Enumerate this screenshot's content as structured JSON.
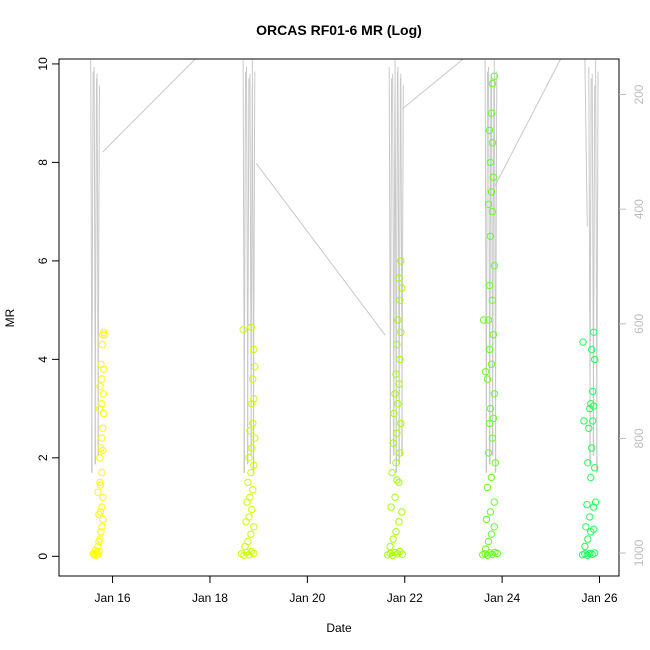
{
  "chart_data": {
    "type": "scatter",
    "title": "ORCAS RF01-6 MR (Log)",
    "xlabel": "Date",
    "ylabel": "MR",
    "x_ticks": [
      {
        "label": "Jan 16",
        "day": 16
      },
      {
        "label": "Jan 18",
        "day": 18
      },
      {
        "label": "Jan 20",
        "day": 20
      },
      {
        "label": "Jan 22",
        "day": 22
      },
      {
        "label": "Jan 24",
        "day": 24
      },
      {
        "label": "Jan 26",
        "day": 26
      }
    ],
    "xlim": [
      14.9,
      26.4
    ],
    "ylim": [
      -0.4,
      10.1
    ],
    "y_ticks": [
      0,
      2,
      4,
      6,
      8,
      10
    ],
    "right_axis": {
      "label": "",
      "ticks": [
        200,
        400,
        600,
        800,
        1000
      ],
      "lim": [
        1040,
        138
      ],
      "reversed": true,
      "color": "#bdbdbd"
    },
    "grid": false,
    "pressure_line_color": "#c8c8c8",
    "series": [
      {
        "color": "#ffff00",
        "x": [
          15.6,
          15.62,
          15.64,
          15.66,
          15.68,
          15.7,
          15.72,
          15.65,
          15.7,
          15.72,
          15.74,
          15.76,
          15.78,
          15.8,
          15.72,
          15.75,
          15.78,
          15.8,
          15.7,
          15.74,
          15.78,
          15.74,
          15.76,
          15.78,
          15.8,
          15.82,
          15.73,
          15.78,
          15.81,
          15.74,
          15.78,
          15.82,
          15.76,
          15.79,
          15.8,
          15.82,
          15.84,
          15.75,
          15.8
        ],
        "y": [
          0.05,
          0.03,
          0.06,
          0.02,
          0.08,
          0.04,
          0.1,
          0.12,
          0.2,
          0.3,
          0.35,
          0.5,
          0.6,
          0.75,
          0.85,
          0.9,
          1.0,
          1.2,
          1.3,
          1.5,
          1.7,
          2.0,
          2.2,
          2.4,
          2.6,
          2.9,
          3.0,
          3.1,
          3.3,
          3.45,
          3.6,
          3.8,
          3.9,
          4.3,
          4.5,
          4.55,
          4.5,
          1.45,
          2.15
        ]
      },
      {
        "color": "#ccff00",
        "x": [
          18.65,
          18.7,
          18.75,
          18.8,
          18.85,
          18.9,
          18.72,
          18.78,
          18.84,
          18.9,
          18.74,
          18.8,
          18.86,
          18.76,
          18.82,
          18.88,
          18.78,
          18.84,
          18.9,
          18.8,
          18.86,
          18.92,
          18.82,
          18.88,
          18.86,
          18.9,
          18.88,
          18.92,
          18.9,
          18.68,
          18.85
        ],
        "y": [
          0.05,
          0.02,
          0.08,
          0.03,
          0.1,
          0.06,
          0.2,
          0.3,
          0.45,
          0.6,
          0.7,
          0.8,
          0.95,
          1.1,
          1.2,
          1.35,
          1.5,
          1.7,
          1.85,
          2.0,
          2.2,
          2.4,
          2.55,
          2.7,
          3.1,
          3.2,
          3.6,
          3.85,
          4.2,
          4.6,
          4.65
        ]
      },
      {
        "color": "#a6ff00",
        "x": [
          21.65,
          21.7,
          21.75,
          21.8,
          21.85,
          21.9,
          21.95,
          21.7,
          21.76,
          21.82,
          21.88,
          21.94,
          21.72,
          21.8,
          21.88,
          21.74,
          21.82,
          21.9,
          21.76,
          21.84,
          21.92,
          21.78,
          21.86,
          21.8,
          21.88,
          21.82,
          21.9,
          21.84,
          21.92,
          21.86,
          21.9,
          21.94,
          21.88,
          21.92,
          21.84
        ],
        "y": [
          0.03,
          0.06,
          0.02,
          0.08,
          0.05,
          0.1,
          0.04,
          0.2,
          0.35,
          0.5,
          0.7,
          0.9,
          1.0,
          1.2,
          1.5,
          1.7,
          1.9,
          2.1,
          2.3,
          2.5,
          2.7,
          2.9,
          3.1,
          3.3,
          3.5,
          3.7,
          4.0,
          4.3,
          4.55,
          4.8,
          5.2,
          5.45,
          5.65,
          6.0,
          1.55
        ]
      },
      {
        "color": "#66ff22",
        "x": [
          23.6,
          23.65,
          23.7,
          23.75,
          23.8,
          23.85,
          23.9,
          23.66,
          23.72,
          23.78,
          23.84,
          23.68,
          23.76,
          23.84,
          23.7,
          23.78,
          23.86,
          23.72,
          23.8,
          23.74,
          23.82,
          23.76,
          23.84,
          23.7,
          23.78,
          23.74,
          23.82,
          23.72,
          23.8,
          23.74,
          23.84,
          23.76,
          23.8,
          23.72,
          23.78,
          23.82,
          23.76,
          23.8,
          23.74,
          23.78,
          23.8,
          23.84,
          23.66,
          23.62
        ],
        "y": [
          0.03,
          0.05,
          0.02,
          0.07,
          0.04,
          0.08,
          0.06,
          0.15,
          0.3,
          0.45,
          0.6,
          0.75,
          0.9,
          1.1,
          1.4,
          1.6,
          1.9,
          2.1,
          2.4,
          2.7,
          2.8,
          3.0,
          3.3,
          3.6,
          3.9,
          4.2,
          4.5,
          4.8,
          5.2,
          5.5,
          5.9,
          6.5,
          7.0,
          7.15,
          7.4,
          7.7,
          8.0,
          8.4,
          8.65,
          9.0,
          9.6,
          9.75,
          3.75,
          4.8
        ]
      },
      {
        "color": "#22ff55",
        "x": [
          25.65,
          25.7,
          25.75,
          25.8,
          25.85,
          25.9,
          25.7,
          25.76,
          25.82,
          25.88,
          25.72,
          25.8,
          25.88,
          25.74,
          25.82,
          25.9,
          25.76,
          25.84,
          25.78,
          25.86,
          25.8,
          25.88,
          25.82,
          25.86,
          25.9,
          25.84,
          25.88,
          25.66,
          25.68,
          25.92
        ],
        "y": [
          0.03,
          0.05,
          0.02,
          0.06,
          0.04,
          0.07,
          0.2,
          0.35,
          0.5,
          0.55,
          0.6,
          0.8,
          1.0,
          1.05,
          1.6,
          1.8,
          1.9,
          2.2,
          2.6,
          2.75,
          3.0,
          3.05,
          3.1,
          3.35,
          4.0,
          4.2,
          4.55,
          4.35,
          2.75,
          1.1
        ]
      }
    ]
  }
}
